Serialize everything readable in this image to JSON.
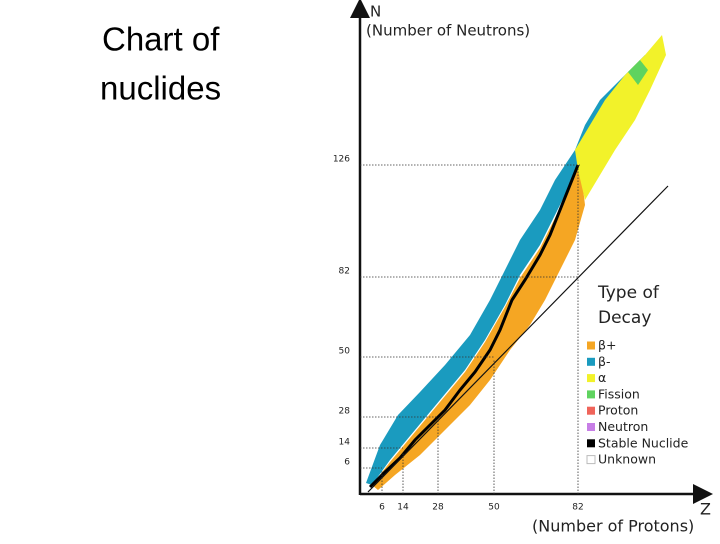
{
  "slide": {
    "title_lines": [
      "Chart of",
      "nuclides"
    ]
  },
  "axes": {
    "y_label": "N",
    "y_sublabel": "(Number of Neutrons)",
    "x_label": "Z",
    "x_sublabel": "(Number of Protons)",
    "x_ticks": [
      "6",
      "14",
      "28",
      "50",
      "82"
    ],
    "y_ticks": [
      "126",
      "82",
      "50",
      "28",
      "14",
      "6"
    ]
  },
  "legend": {
    "title_lines": [
      "Type of",
      "Decay"
    ],
    "items": [
      {
        "label": "β+",
        "color": "#f5a623"
      },
      {
        "label": "β-",
        "color": "#1a9bbf"
      },
      {
        "label": "α",
        "color": "#f2f22a"
      },
      {
        "label": "Fission",
        "color": "#5fd35f"
      },
      {
        "label": "Proton",
        "color": "#f0645a"
      },
      {
        "label": "Neutron",
        "color": "#c77ee6"
      },
      {
        "label": "Stable Nuclide",
        "color": "#000000"
      },
      {
        "label": "Unknown",
        "color": "#ffffff"
      }
    ]
  }
}
